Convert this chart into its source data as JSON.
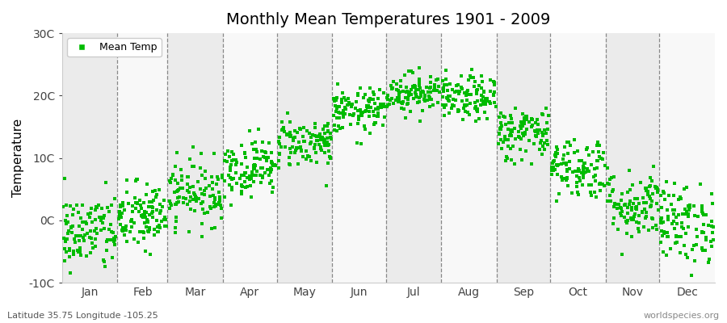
{
  "title": "Monthly Mean Temperatures 1901 - 2009",
  "ylabel": "Temperature",
  "subtitle_left": "Latitude 35.75 Longitude -105.25",
  "subtitle_right": "worldspecies.org",
  "ylim": [
    -10,
    30
  ],
  "ytick_values": [
    -10,
    0,
    10,
    20,
    30
  ],
  "ytick_labels": [
    "-10C",
    "0C",
    "10C",
    "20C",
    "30C"
  ],
  "month_names": [
    "Jan",
    "Feb",
    "Mar",
    "Apr",
    "May",
    "Jun",
    "Jul",
    "Aug",
    "Sep",
    "Oct",
    "Nov",
    "Dec"
  ],
  "month_days": [
    31,
    28,
    31,
    30,
    31,
    30,
    31,
    31,
    30,
    31,
    30,
    31
  ],
  "marker_color": "#00bb00",
  "marker_size": 9,
  "background_color": "#ffffff",
  "band_color_even": "#ebebeb",
  "band_color_odd": "#f8f8f8",
  "legend_label": "Mean Temp",
  "monthly_means": [
    -2.0,
    0.5,
    4.5,
    8.5,
    12.5,
    17.5,
    20.5,
    19.5,
    14.0,
    8.5,
    2.5,
    -0.5
  ],
  "monthly_stds": [
    3.2,
    2.8,
    2.6,
    2.3,
    2.0,
    1.8,
    1.6,
    1.8,
    2.2,
    2.5,
    2.8,
    3.2
  ],
  "n_years": 109,
  "seed": 42
}
